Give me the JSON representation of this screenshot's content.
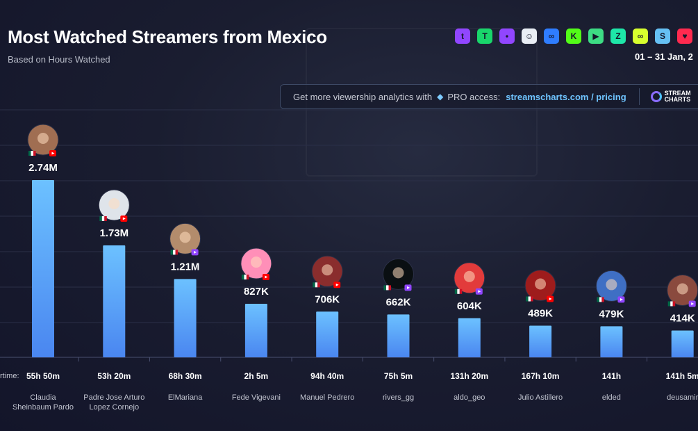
{
  "header": {
    "title": "Most Watched Streamers from Mexico",
    "subtitle": "Based on Hours Watched",
    "date_range": "01 – 31 Jan, 2"
  },
  "promo": {
    "text": "Get more viewership analytics with",
    "pro_label": "PRO access:",
    "link": "streamscharts.com / pricing",
    "logo_line1": "STREAM",
    "logo_line2": "CHARTS"
  },
  "platforms": [
    {
      "icon": "twitch-icon",
      "color": "#9146ff",
      "glyph": "t"
    },
    {
      "icon": "trovo-icon",
      "color": "#19d66b",
      "glyph": "T"
    },
    {
      "icon": "discord-icon",
      "color": "#9146ff",
      "glyph": "•"
    },
    {
      "icon": "ghost-icon",
      "color": "#e9eef5",
      "glyph": "☺"
    },
    {
      "icon": "infinity-icon",
      "color": "#2f7dff",
      "glyph": "∞"
    },
    {
      "icon": "kick-icon",
      "color": "#53fc18",
      "glyph": "K"
    },
    {
      "icon": "play-icon",
      "color": "#3ddc84",
      "glyph": "▶"
    },
    {
      "icon": "zeta-icon",
      "color": "#1ee6a8",
      "glyph": "Z"
    },
    {
      "icon": "loop-icon",
      "color": "#d8ff2e",
      "glyph": "∞"
    },
    {
      "icon": "steam-icon",
      "color": "#66c0f4",
      "glyph": "S"
    },
    {
      "icon": "heart-icon",
      "color": "#ff2a4f",
      "glyph": "♥"
    }
  ],
  "colors": {
    "bar_top": "#6cc1ff",
    "bar_bottom": "#4a86f0",
    "grid": "#2b3048",
    "twitch": "#9146ff",
    "youtube": "#ff0000"
  },
  "chart_data": {
    "type": "bar",
    "title": "Most Watched Streamers from Mexico",
    "subtitle": "Based on Hours Watched",
    "axis_caption": "rtime:",
    "categories": [
      "Claudia Sheinbaum Pardo",
      "Padre Jose Arturo Lopez Cornejo",
      "ElMariana",
      "Fede Vigevani",
      "Manuel Pedrero",
      "rivers_gg",
      "aldo_geo",
      "Julio Astillero",
      "elded",
      "deusamir"
    ],
    "category_lines": [
      [
        "Claudia",
        "Sheinbaum Pardo"
      ],
      [
        "Padre Jose Arturo",
        "Lopez Cornejo"
      ],
      [
        "ElMariana"
      ],
      [
        "Fede Vigevani"
      ],
      [
        "Manuel Pedrero"
      ],
      [
        "rivers_gg"
      ],
      [
        "aldo_geo"
      ],
      [
        "Julio Astillero"
      ],
      [
        "elded"
      ],
      [
        "deusamir"
      ]
    ],
    "values": [
      2740000,
      1730000,
      1210000,
      827000,
      706000,
      662000,
      604000,
      489000,
      479000,
      414000
    ],
    "value_labels": [
      "2.74M",
      "1.73M",
      "1.21M",
      "827K",
      "706K",
      "662K",
      "604K",
      "489K",
      "479K",
      "414K"
    ],
    "airtime": [
      "55h 50m",
      "53h 20m",
      "68h 30m",
      "2h 5m",
      "94h 40m",
      "75h 5m",
      "131h 20m",
      "167h 10m",
      "141h",
      "141h 5m"
    ],
    "platform": [
      "youtube",
      "youtube",
      "twitch",
      "youtube",
      "youtube",
      "twitch",
      "twitch",
      "youtube",
      "twitch",
      "twitch"
    ],
    "avatar_colors": [
      "#a06e52",
      "#dfe4ea",
      "#b38c6c",
      "#ff8fb8",
      "#8a2d2d",
      "#0a0f12",
      "#e23b3b",
      "#9e1c1c",
      "#3f6fc4",
      "#8a4a3e"
    ],
    "ylim": [
      0,
      2740000
    ],
    "grid": true,
    "legend": "none"
  }
}
